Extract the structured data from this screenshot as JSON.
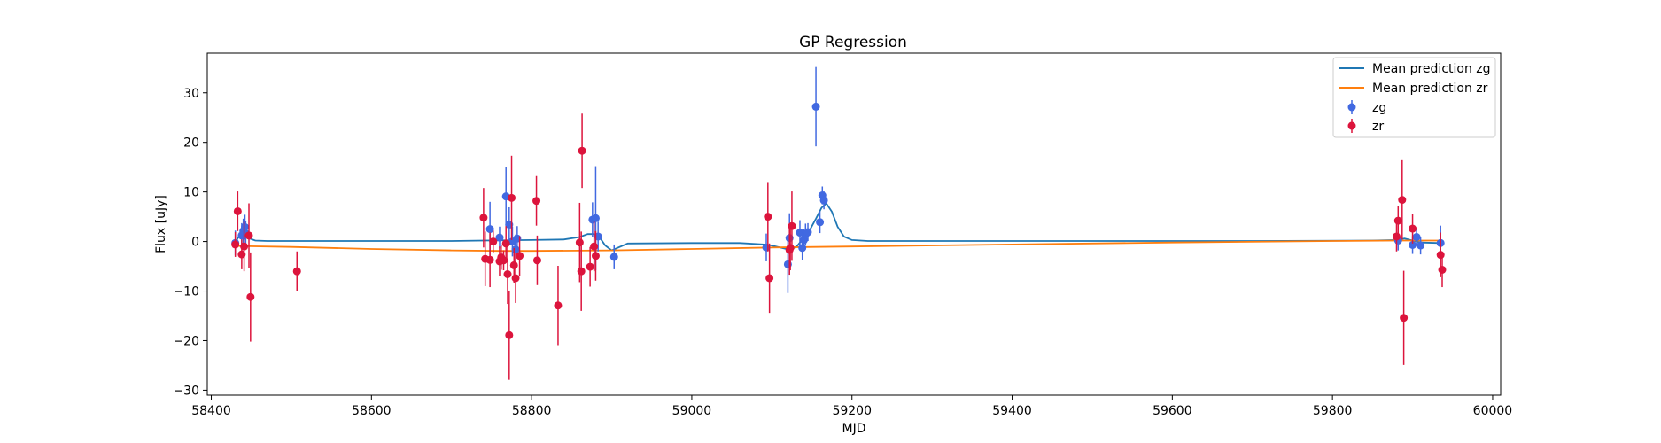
{
  "chart_data": {
    "type": "scatter",
    "title": "GP Regression",
    "xlabel": "MJD",
    "ylabel": "Flux [uJy]",
    "xlim": [
      58395,
      60010
    ],
    "ylim": [
      -31,
      38
    ],
    "xticks": [
      58400,
      58600,
      58800,
      59000,
      59200,
      59400,
      59600,
      59800,
      60000
    ],
    "yticks": [
      -30,
      -20,
      -10,
      0,
      10,
      20,
      30
    ],
    "grid": false,
    "legend_position": "top-right",
    "series": [
      {
        "name": "Mean prediction zg",
        "kind": "line",
        "color": "#1f77b4",
        "x": [
          58430,
          58436,
          58440,
          58444,
          58448,
          58455,
          58470,
          58500,
          58600,
          58700,
          58740,
          58800,
          58840,
          58860,
          58870,
          58878,
          58885,
          58892,
          58900,
          58920,
          59000,
          59060,
          59090,
          59100,
          59110,
          59118,
          59125,
          59132,
          59140,
          59148,
          59155,
          59162,
          59168,
          59175,
          59182,
          59190,
          59200,
          59220,
          59300,
          59500,
          59700,
          59850,
          59880,
          59890,
          59900,
          59910,
          59935
        ],
        "y": [
          -0.3,
          1.6,
          2.0,
          1.2,
          0.6,
          0.2,
          0.1,
          0.1,
          0.1,
          0.1,
          0.2,
          0.3,
          0.4,
          0.9,
          1.5,
          1.5,
          0.8,
          -0.8,
          -1.8,
          -0.4,
          -0.3,
          -0.3,
          -0.6,
          -0.8,
          -1.2,
          -1.5,
          -1.6,
          -0.8,
          0.8,
          2.5,
          4.6,
          6.8,
          7.7,
          6.0,
          3.0,
          1.0,
          0.3,
          0.1,
          0.1,
          0.1,
          0.1,
          0.2,
          0.3,
          0.6,
          0.2,
          -0.2,
          -0.3
        ]
      },
      {
        "name": "Mean prediction zr",
        "kind": "line",
        "color": "#ff7f0e",
        "x": [
          58430,
          58500,
          58600,
          58700,
          58760,
          58800,
          58900,
          59000,
          59100,
          59200,
          59400,
          59600,
          59800,
          59880,
          59935
        ],
        "y": [
          -0.9,
          -1.1,
          -1.5,
          -1.8,
          -1.9,
          -1.9,
          -1.8,
          -1.5,
          -1.2,
          -1.0,
          -0.6,
          -0.2,
          0.1,
          0.2,
          0.2
        ]
      },
      {
        "name": "zg",
        "kind": "errorbar",
        "color": "#4169e1",
        "x": [
          58430,
          58438,
          58440,
          58442,
          58443,
          58748,
          58760,
          58768,
          58772,
          58776,
          58780,
          58782,
          58876,
          58880,
          58883,
          58903,
          59093,
          59120,
          59122,
          59135,
          59138,
          59140,
          59142,
          59145,
          59155,
          59160,
          59163,
          59165,
          59882,
          59900,
          59905,
          59910,
          59935
        ],
        "y": [
          -0.3,
          1.2,
          2.1,
          2.9,
          1.6,
          2.5,
          0.8,
          9.1,
          3.4,
          0.0,
          -1.6,
          0.6,
          4.4,
          4.7,
          1.0,
          -3.1,
          -1.2,
          -4.6,
          0.7,
          1.8,
          -1.3,
          0.3,
          1.4,
          1.9,
          27.2,
          3.9,
          9.3,
          8.3,
          0.2,
          -0.7,
          0.9,
          -0.8,
          -0.3
        ],
        "yerr": [
          2.5,
          2.5,
          2.5,
          2.5,
          2.5,
          5.5,
          2.2,
          6.0,
          3.5,
          3.0,
          3.0,
          2.5,
          3.5,
          10.5,
          3.0,
          2.5,
          2.8,
          5.8,
          5.0,
          2.5,
          2.5,
          2.2,
          2.2,
          1.8,
          8.0,
          2.2,
          1.8,
          1.8,
          2.0,
          1.8,
          1.8,
          1.8,
          3.5
        ]
      },
      {
        "name": "zr",
        "kind": "errorbar",
        "color": "#dc143c",
        "x": [
          58430,
          58433,
          58438,
          58441,
          58447,
          58449,
          58507,
          58740,
          58742,
          58748,
          58752,
          58760,
          58762,
          58765,
          58768,
          58770,
          58772,
          58775,
          58778,
          58780,
          58785,
          58806,
          58807,
          58833,
          58860,
          58862,
          58863,
          58873,
          58878,
          58880,
          59095,
          59097,
          59122,
          59123,
          59125,
          59880,
          59882,
          59887,
          59889,
          59900,
          59935,
          59937
        ],
        "y": [
          -0.6,
          6.1,
          -2.6,
          -1.0,
          1.2,
          -11.2,
          -6.0,
          4.8,
          -3.5,
          -3.7,
          0.0,
          -4.0,
          -3.2,
          -3.8,
          -0.4,
          -6.6,
          -18.9,
          8.8,
          -4.8,
          -7.4,
          -2.9,
          8.2,
          -3.8,
          -12.9,
          -0.2,
          -6.0,
          18.3,
          -5.1,
          -1.0,
          -2.9,
          5.0,
          -7.4,
          -1.7,
          -1.3,
          3.1,
          1.0,
          4.2,
          8.4,
          -15.4,
          2.6,
          -2.7,
          -5.7
        ],
        "yerr": [
          2.5,
          4.0,
          3.0,
          5.0,
          6.5,
          9.0,
          4.0,
          6.0,
          5.5,
          5.5,
          2.2,
          3.0,
          2.5,
          2.0,
          3.5,
          6.0,
          9.0,
          8.5,
          3.5,
          5.0,
          4.0,
          5.0,
          5.0,
          8.0,
          8.0,
          8.0,
          7.5,
          4.0,
          5.0,
          5.0,
          7.0,
          7.0,
          5.0,
          4.5,
          7.0,
          3.0,
          3.0,
          8.0,
          9.5,
          3.0,
          4.5,
          3.5
        ]
      }
    ]
  }
}
